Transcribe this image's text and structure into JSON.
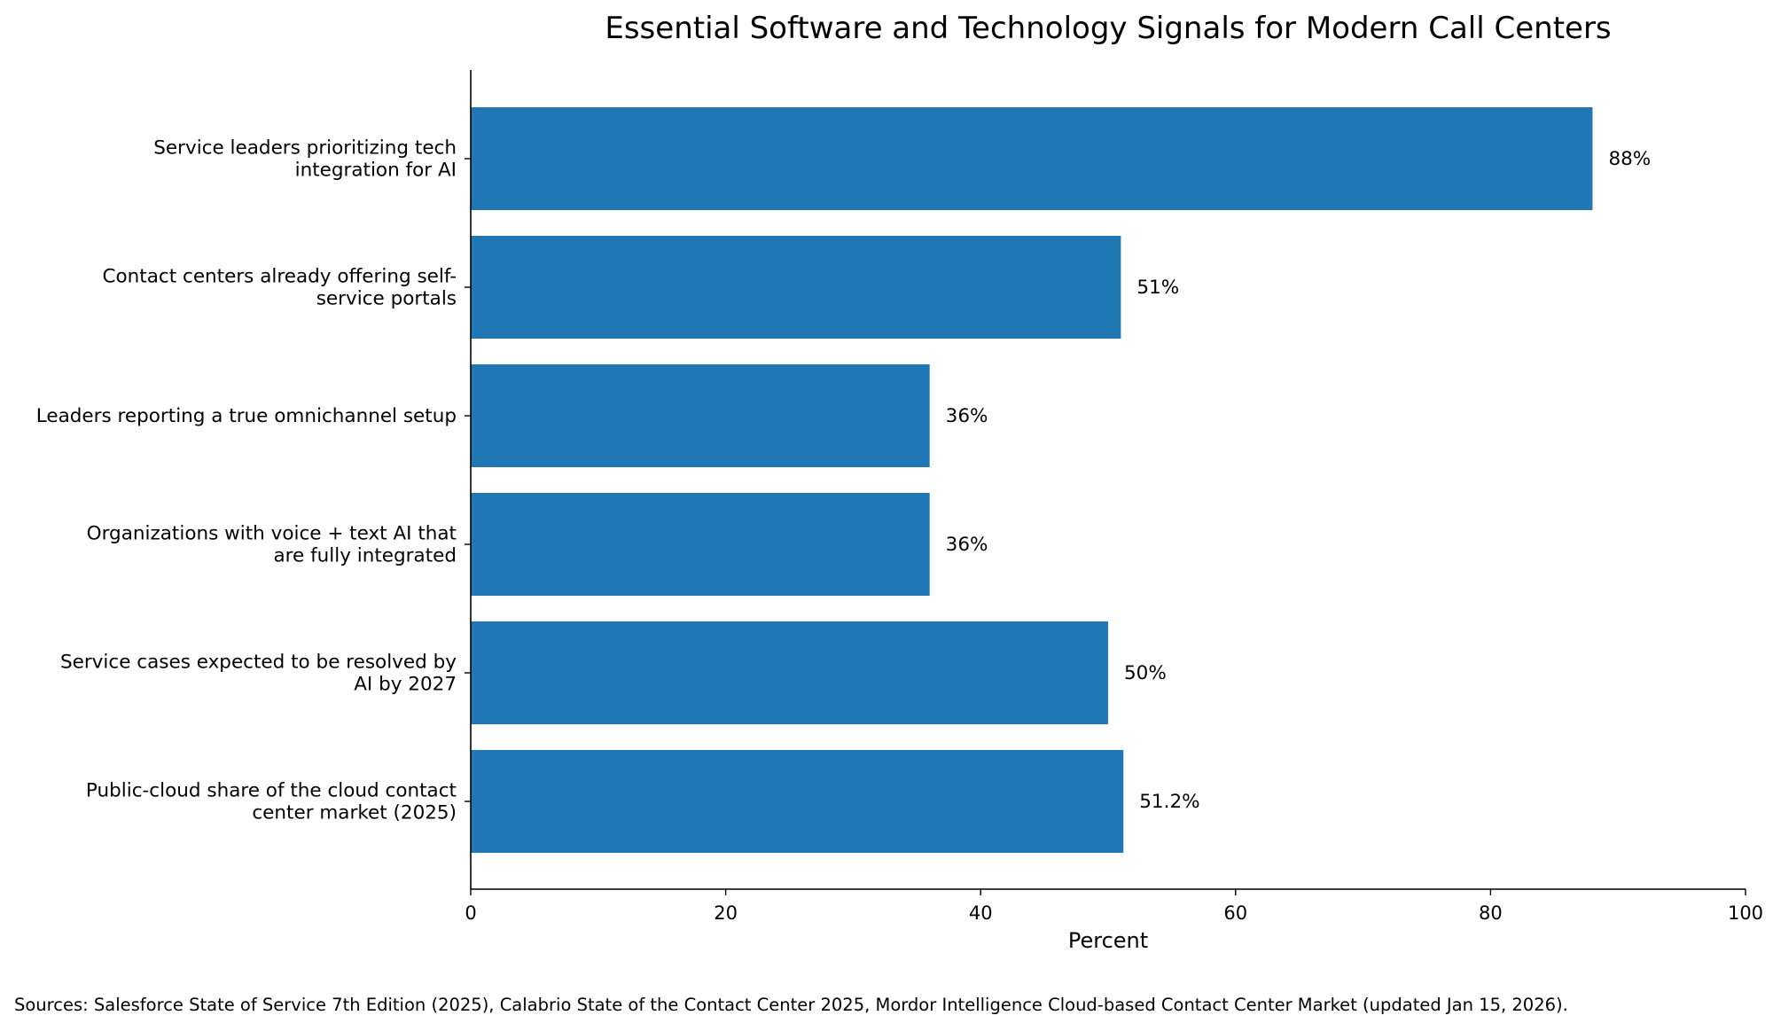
{
  "chart_data": {
    "type": "bar",
    "orientation": "horizontal",
    "title": "Essential Software and Technology Signals for Modern Call Centers",
    "xlabel": "Percent",
    "ylabel": "",
    "xlim": [
      0,
      100
    ],
    "xticks": [
      0,
      20,
      40,
      60,
      80,
      100
    ],
    "grid": false,
    "bar_color": "#1f77b4",
    "categories": [
      [
        "Service leaders prioritizing tech",
        "integration for AI"
      ],
      [
        "Contact centers already offering self-",
        "service portals"
      ],
      [
        "Leaders reporting a true omnichannel setup"
      ],
      [
        "Organizations with voice + text AI that",
        "are fully integrated"
      ],
      [
        "Service cases expected to be resolved by",
        "AI by 2027"
      ],
      [
        "Public-cloud share of the cloud contact",
        "center market (2025)"
      ]
    ],
    "values": [
      88,
      51,
      36,
      36,
      50,
      51.2
    ],
    "value_labels": [
      "88%",
      "51%",
      "36%",
      "36%",
      "50%",
      "51.2%"
    ]
  },
  "footer": {
    "sources": "Sources: Salesforce State of Service 7th Edition (2025), Calabrio State of the Contact Center 2025, Mordor Intelligence Cloud-based Contact Center Market (updated Jan 15, 2026)."
  }
}
